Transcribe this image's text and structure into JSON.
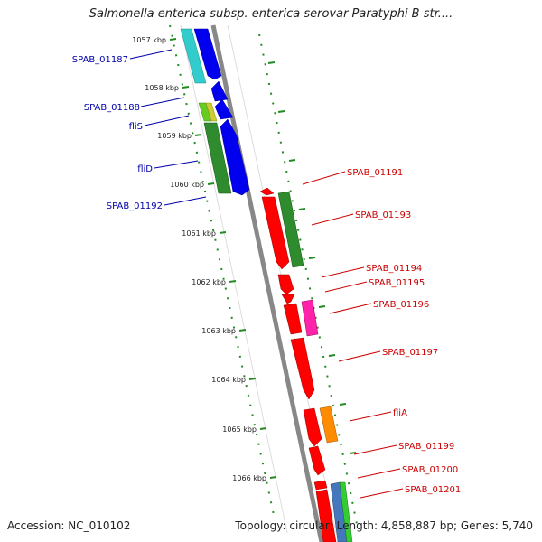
{
  "title": "Salmonella enterica subsp. enterica serovar Paratyphi B str....",
  "footer": {
    "accession": "Accession: NC_010102",
    "summary": "Topology: circular; Length: 4,858,887 bp; Genes: 5,740"
  },
  "ticks": [
    "1057 kbp",
    "1058 kbp",
    "1059 kbp",
    "1060 kbp",
    "1061 kbp",
    "1062 kbp",
    "1063 kbp",
    "1064 kbp",
    "1065 kbp",
    "1066 kbp"
  ],
  "left_labels": [
    "SPAB_01187",
    "SPAB_01188",
    "fliS",
    "fliD",
    "SPAB_01192"
  ],
  "right_labels": [
    "SPAB_01191",
    "SPAB_01193",
    "SPAB_01194",
    "SPAB_01195",
    "SPAB_01196",
    "SPAB_01197",
    "fliA",
    "SPAB_01199",
    "SPAB_01200",
    "SPAB_01201"
  ],
  "colors": {
    "label_left": "#0000aa",
    "label_right": "#cc0000",
    "tick": "#228b22",
    "backbone": "#888888",
    "gene_blue": "#0000ee",
    "gene_red": "#ff0000",
    "gene_green": "#2e8b2e",
    "gene_cyan": "#33cccc",
    "gene_magenta": "#ff22aa",
    "gene_orange": "#ff8c00"
  }
}
